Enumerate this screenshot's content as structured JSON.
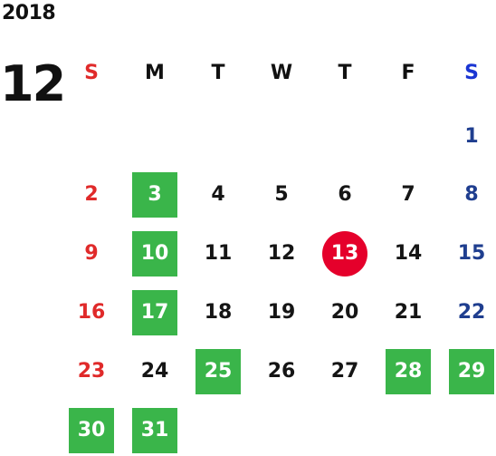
{
  "calendar": {
    "year": "2018",
    "month": "12",
    "weekdays": [
      "S",
      "M",
      "T",
      "W",
      "T",
      "F",
      "S"
    ],
    "weekday_colors": [
      "#e02a2a",
      "#111111",
      "#111111",
      "#111111",
      "#111111",
      "#111111",
      "#1a35d3"
    ],
    "weeks": [
      [
        "",
        "",
        "",
        "",
        "",
        "",
        "1"
      ],
      [
        "2",
        "3",
        "4",
        "5",
        "6",
        "7",
        "8"
      ],
      [
        "9",
        "10",
        "11",
        "12",
        "13",
        "14",
        "15"
      ],
      [
        "16",
        "17",
        "18",
        "19",
        "20",
        "21",
        "22"
      ],
      [
        "23",
        "24",
        "25",
        "26",
        "27",
        "28",
        "29"
      ],
      [
        "30",
        "31",
        "",
        "",
        "",
        "",
        ""
      ]
    ],
    "highlighted_days": [
      "3",
      "10",
      "17",
      "25",
      "28",
      "29",
      "30",
      "31"
    ],
    "today": "13",
    "colors": {
      "highlight": "#3ab54a",
      "today": "#e5002b",
      "sunday": "#e02a2a",
      "saturday": "#1f3e8f"
    }
  }
}
